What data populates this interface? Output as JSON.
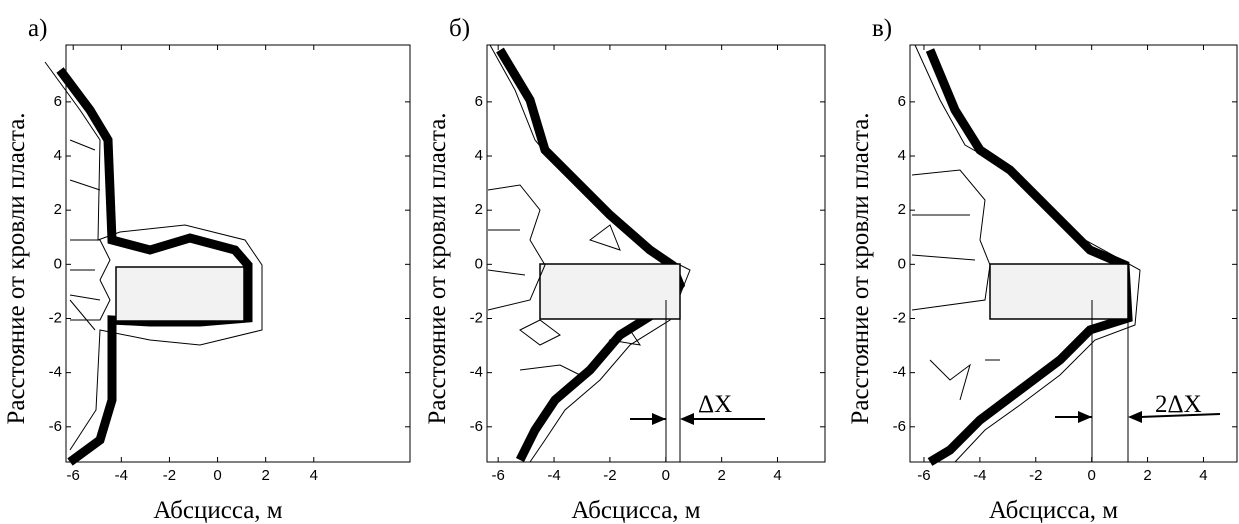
{
  "chart_data": [
    {
      "type": "contour",
      "panel": "а)",
      "xlabel": "Абсцисса, м",
      "ylabel": "Расстояние от кровли пласта.",
      "xlim": [
        -6.3,
        8
      ],
      "ylim": [
        -7.3,
        8.1
      ],
      "xticks": [
        -6,
        -4,
        -2,
        0,
        2,
        4
      ],
      "yticks": [
        -6,
        -4,
        -2,
        0,
        2,
        4,
        6
      ]
    },
    {
      "type": "contour",
      "panel": "б)",
      "xlabel": "Абсцисса, м",
      "ylabel": "Расстояние от кровли пласта.",
      "xlim": [
        -6.4,
        5.7
      ],
      "ylim": [
        -7.3,
        8.1
      ],
      "xticks": [
        -6,
        -4,
        -2,
        0,
        2,
        4
      ],
      "yticks": [
        -6,
        -4,
        -2,
        0,
        2,
        4,
        6
      ],
      "annotation": "ΔX"
    },
    {
      "type": "contour",
      "panel": "в)",
      "xlabel": "Абсцисса, м",
      "ylabel": "Расстояние от кровли пласта.",
      "xlim": [
        -6.5,
        5.2
      ],
      "ylim": [
        -7.3,
        8.1
      ],
      "xticks": [
        -6,
        -4,
        -2,
        0,
        2,
        4
      ],
      "yticks": [
        -6,
        -4,
        -2,
        0,
        2,
        4,
        6
      ],
      "annotation": "2ΔX"
    }
  ]
}
